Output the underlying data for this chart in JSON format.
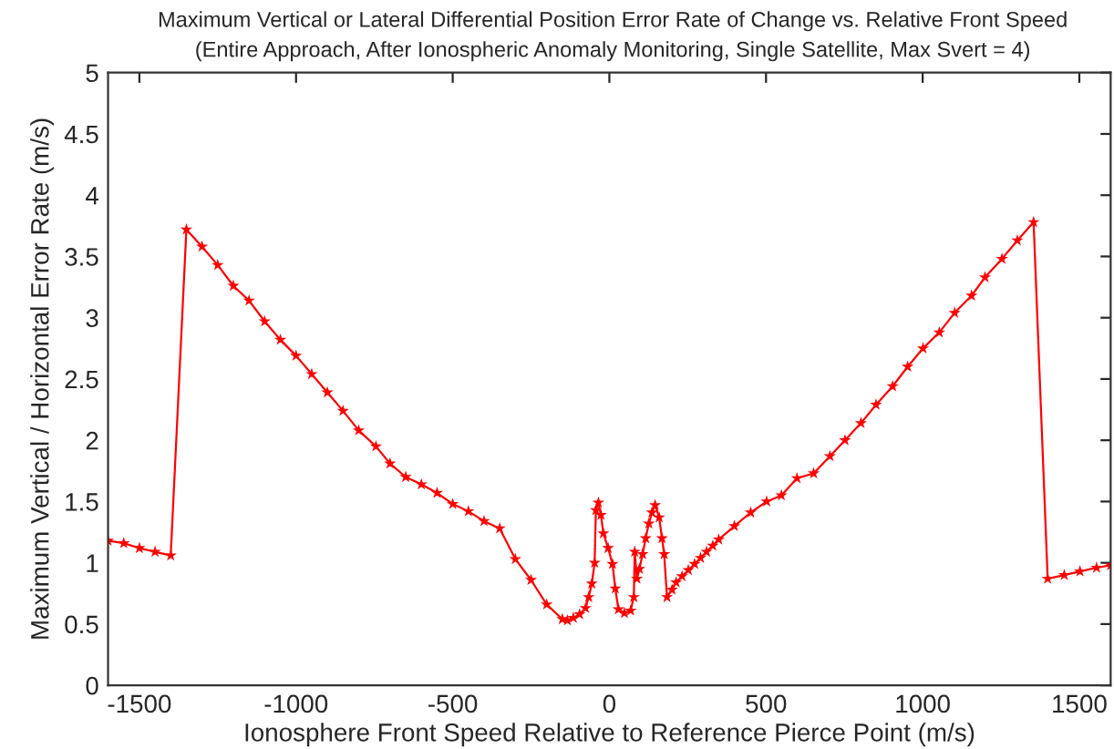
{
  "chart_data": {
    "type": "line",
    "title": "Maximum Vertical or Lateral Differential Position Error Rate of Change vs. Relative Front Speed",
    "subtitle": "(Entire Approach, After Ionospheric Anomaly Monitoring, Single Satellite, Max Svert = 4)",
    "xlabel": "Ionosphere Front Speed Relative to Reference Pierce Point (m/s)",
    "ylabel": "Maximum Vertical / Horizontal Error Rate (m/s)",
    "series": [
      {
        "color": "#ff0000",
        "x": [
          -1600,
          -1550,
          -1500,
          -1450,
          -1400,
          -1350,
          -1300,
          -1250,
          -1200,
          -1150,
          -1100,
          -1050,
          -1000,
          -950,
          -900,
          -850,
          -800,
          -745,
          -700,
          -650,
          -600,
          -550,
          -500,
          -450,
          -400,
          -350,
          -300,
          -250,
          -200,
          -150,
          -134,
          -115,
          -95,
          -76,
          -66,
          -56,
          -47,
          -43,
          -35,
          -27,
          -19,
          -4,
          10,
          19,
          29,
          48,
          68,
          78,
          81,
          88,
          96,
          106,
          116,
          126,
          136,
          146,
          159,
          168,
          175,
          184,
          200,
          213,
          232,
          252,
          272,
          291,
          310,
          330,
          349,
          399,
          451,
          502,
          549,
          599,
          652,
          704,
          752,
          803,
          851,
          904,
          952,
          1001,
          1053,
          1102,
          1156,
          1199,
          1253,
          1302,
          1354,
          1399,
          1452,
          1502,
          1555,
          1600
        ],
        "values": [
          1.18,
          1.16,
          1.12,
          1.09,
          1.06,
          3.72,
          3.58,
          3.43,
          3.26,
          3.14,
          2.97,
          2.82,
          2.69,
          2.54,
          2.39,
          2.24,
          2.08,
          1.95,
          1.81,
          1.7,
          1.64,
          1.57,
          1.48,
          1.42,
          1.34,
          1.28,
          1.03,
          0.86,
          0.66,
          0.54,
          0.53,
          0.55,
          0.58,
          0.63,
          0.72,
          0.83,
          1.0,
          1.43,
          1.49,
          1.39,
          1.24,
          1.12,
          0.99,
          0.79,
          0.62,
          0.59,
          0.61,
          0.72,
          1.09,
          0.87,
          0.95,
          1.07,
          1.2,
          1.32,
          1.41,
          1.47,
          1.37,
          1.2,
          1.07,
          0.72,
          0.78,
          0.84,
          0.89,
          0.94,
          0.99,
          1.04,
          1.09,
          1.14,
          1.19,
          1.3,
          1.41,
          1.5,
          1.55,
          1.69,
          1.73,
          1.87,
          2.0,
          2.14,
          2.29,
          2.44,
          2.6,
          2.75,
          2.88,
          3.04,
          3.18,
          3.33,
          3.48,
          3.63,
          3.78,
          0.87,
          0.9,
          0.93,
          0.96,
          0.98
        ]
      }
    ],
    "marker": "star",
    "line_style": "solid",
    "grid": false,
    "legend": false,
    "xlim": [
      -1600,
      1600
    ],
    "xticks": [
      -1500,
      -1000,
      -500,
      0,
      500,
      1000,
      1500
    ],
    "ylim": [
      0,
      5
    ],
    "yticks": [
      0,
      0.5,
      1,
      1.5,
      2,
      2.5,
      3,
      3.5,
      4,
      4.5,
      5
    ]
  }
}
